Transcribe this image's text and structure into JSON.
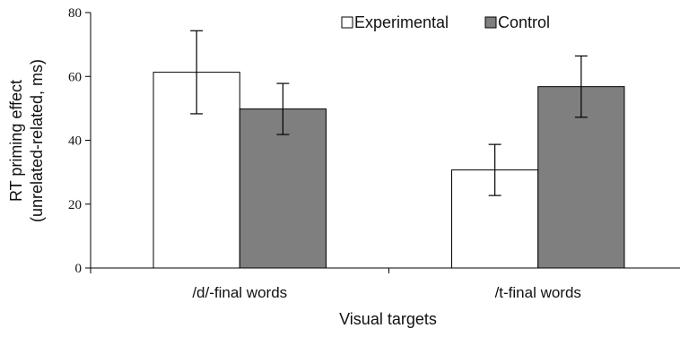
{
  "chart_data": {
    "type": "bar",
    "categories": [
      "/d/-final words",
      "/t-final words"
    ],
    "series": [
      {
        "name": "Experimental",
        "color": "#ffffff",
        "values": [
          61.3,
          30.7
        ],
        "error": [
          13,
          8
        ]
      },
      {
        "name": "Control",
        "color": "#7f7f7f",
        "values": [
          49.8,
          56.8
        ],
        "error": [
          8,
          9.6
        ]
      }
    ],
    "xlabel": "Visual targets",
    "ylabel": [
      "RT priming effect",
      "(unrelated-related, ms)"
    ],
    "ylim": [
      0,
      80
    ],
    "yticks": [
      0,
      20,
      40,
      60,
      80
    ],
    "grid": false,
    "legend": "top-right"
  }
}
